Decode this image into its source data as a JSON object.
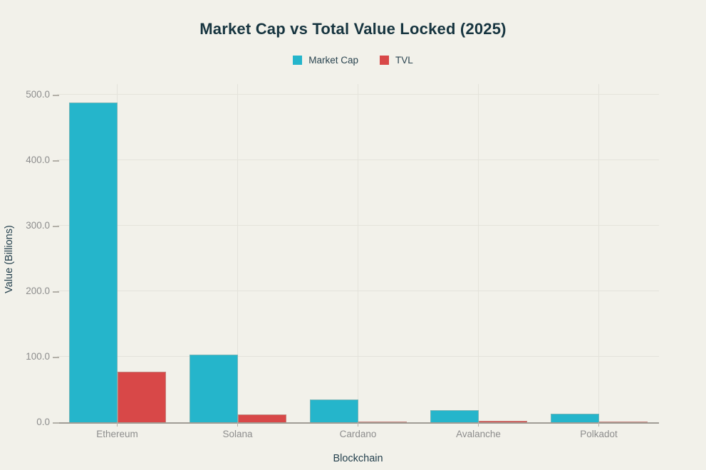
{
  "page": {
    "background_color": "#f2f1ea"
  },
  "chart_data": {
    "type": "bar",
    "title": "Market Cap vs Total Value Locked (2025)",
    "xlabel": "Blockchain",
    "ylabel": "Value (Billions)",
    "categories": [
      "Ethereum",
      "Solana",
      "Cardano",
      "Avalanche",
      "Polkadot"
    ],
    "series": [
      {
        "name": "Market Cap",
        "color": "#25b5cb",
        "values": [
          488,
          103,
          35,
          18,
          13
        ]
      },
      {
        "name": "TVL",
        "color": "#d84848",
        "values": [
          77,
          12,
          0.5,
          2,
          0.2
        ]
      }
    ],
    "ylim": [
      0,
      500
    ],
    "yticks": [
      {
        "value": 0,
        "label": "0.0"
      },
      {
        "value": 100,
        "label": "100.0"
      },
      {
        "value": 200,
        "label": "200.0"
      },
      {
        "value": 300,
        "label": "300.0"
      },
      {
        "value": 400,
        "label": "400.0"
      },
      {
        "value": 500,
        "label": "500.0"
      }
    ],
    "grid": "horizontal gridlines at each ytick; vertical gridlines at category centers",
    "legend_position": "top-center",
    "colors": {
      "title_text": "#16343f",
      "axis_label_text": "#25414e",
      "tick_label_text": "#8d8d8d",
      "gridline": "#e4e3db",
      "axis_line": "#a19d95"
    }
  }
}
